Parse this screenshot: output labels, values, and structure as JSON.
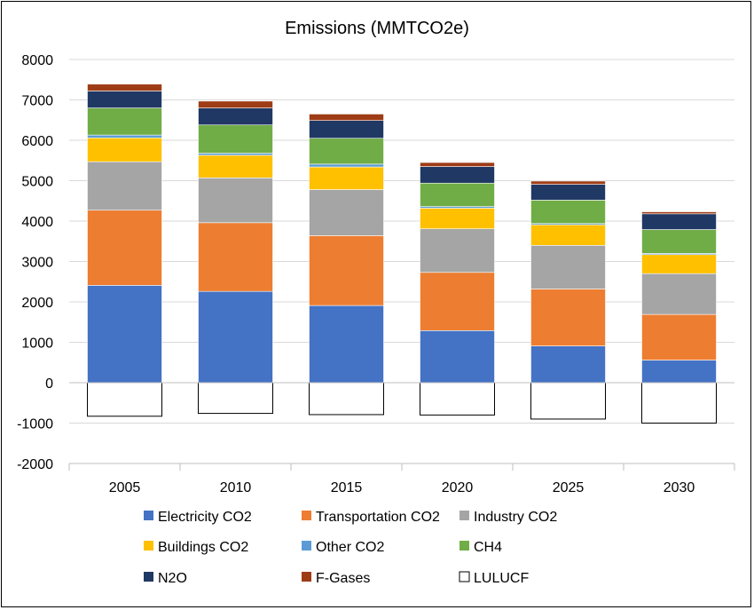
{
  "chart_data": {
    "type": "bar",
    "stacked": true,
    "title": "Emissions (MMTCO2e)",
    "categories": [
      "2005",
      "2010",
      "2015",
      "2020",
      "2025",
      "2030"
    ],
    "ylim": [
      -2000,
      8000
    ],
    "yticks": [
      8000,
      7000,
      6000,
      5000,
      4000,
      3000,
      2000,
      1000,
      0,
      -1000,
      -2000
    ],
    "grid": true,
    "legend": "bottom",
    "series": [
      {
        "name": "Electricity CO2",
        "color": "#4472C4",
        "values": [
          2410,
          2260,
          1910,
          1290,
          910,
          560
        ]
      },
      {
        "name": "Transportation CO2",
        "color": "#ED7D31",
        "values": [
          1860,
          1700,
          1730,
          1440,
          1410,
          1130
        ]
      },
      {
        "name": "Industry CO2",
        "color": "#A5A5A5",
        "values": [
          1200,
          1110,
          1140,
          1080,
          1080,
          1010
        ]
      },
      {
        "name": "Buildings CO2",
        "color": "#FFC000",
        "values": [
          590,
          560,
          560,
          510,
          510,
          470
        ]
      },
      {
        "name": "Other CO2",
        "color": "#5B9BD5",
        "values": [
          70,
          50,
          70,
          40,
          30,
          30
        ]
      },
      {
        "name": "CH4",
        "color": "#70AD47",
        "values": [
          670,
          700,
          640,
          580,
          580,
          590
        ]
      },
      {
        "name": "N2O",
        "color": "#203864",
        "values": [
          420,
          420,
          440,
          410,
          390,
          390
        ]
      },
      {
        "name": "F-Gases",
        "color": "#9E3C16",
        "values": [
          170,
          170,
          160,
          100,
          80,
          50
        ]
      },
      {
        "name": "LULUCF",
        "color": "#FFFFFF",
        "values": [
          -830,
          -760,
          -790,
          -800,
          -900,
          -1000
        ]
      }
    ]
  }
}
